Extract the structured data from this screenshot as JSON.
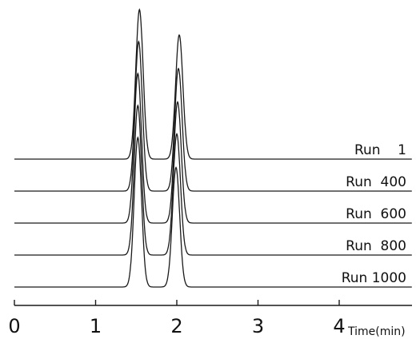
{
  "chart_data": {
    "type": "line",
    "title": "",
    "xlabel": "Time(min)",
    "ylabel": "",
    "xlim": [
      0,
      4.9
    ],
    "x_ticks": [
      0,
      1,
      2,
      3,
      4
    ],
    "x_tick_labels": [
      "0",
      "1",
      "2",
      "3",
      "4"
    ],
    "grid": false,
    "legend": "none",
    "line_color": "#1a1a1a",
    "series": [
      {
        "name": "Run    1",
        "peaks": [
          {
            "time": 1.54,
            "height": 1.0
          },
          {
            "time": 2.03,
            "height": 0.83
          }
        ]
      },
      {
        "name": "Run  400",
        "peaks": [
          {
            "time": 1.53,
            "height": 1.0
          },
          {
            "time": 2.02,
            "height": 0.82
          }
        ]
      },
      {
        "name": "Run  600",
        "peaks": [
          {
            "time": 1.52,
            "height": 1.0
          },
          {
            "time": 2.01,
            "height": 0.81
          }
        ]
      },
      {
        "name": "Run  800",
        "peaks": [
          {
            "time": 1.52,
            "height": 1.0
          },
          {
            "time": 2.0,
            "height": 0.81
          }
        ]
      },
      {
        "name": "Run 1000",
        "peaks": [
          {
            "time": 1.52,
            "height": 1.0
          },
          {
            "time": 1.99,
            "height": 0.8
          }
        ]
      }
    ]
  }
}
